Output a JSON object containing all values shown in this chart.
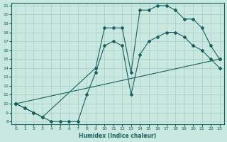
{
  "xlabel": "Humidex (Indice chaleur)",
  "bg_color": "#c8e8e0",
  "grid_color": "#a8ccc8",
  "line_color": "#1a6060",
  "xlim": [
    -0.5,
    23.5
  ],
  "ylim": [
    7.7,
    21.3
  ],
  "xticks": [
    0,
    1,
    2,
    3,
    4,
    5,
    6,
    7,
    8,
    9,
    10,
    11,
    12,
    13,
    14,
    15,
    16,
    17,
    18,
    19,
    20,
    21,
    22,
    23
  ],
  "yticks": [
    8,
    9,
    10,
    11,
    12,
    13,
    14,
    15,
    16,
    17,
    18,
    19,
    20,
    21
  ],
  "line1_x": [
    0,
    1,
    2,
    3,
    4,
    5,
    6,
    7,
    8,
    9,
    10,
    11,
    12,
    13,
    14,
    15,
    16,
    17,
    18,
    19,
    20,
    21,
    22,
    23
  ],
  "line1_y": [
    10,
    9.5,
    9.0,
    8.5,
    8.0,
    8.0,
    8.0,
    8.0,
    11.0,
    13.5,
    16.5,
    17.0,
    16.5,
    11.0,
    15.5,
    17.0,
    17.5,
    18.0,
    18.0,
    17.5,
    16.5,
    16.0,
    15.0,
    14.0
  ],
  "line2_x": [
    0,
    1,
    2,
    3,
    9,
    10,
    11,
    12,
    13,
    14,
    15,
    16,
    17,
    18,
    19,
    20,
    21,
    22,
    23
  ],
  "line2_y": [
    10,
    9.5,
    9.0,
    8.5,
    14.0,
    18.5,
    18.5,
    18.5,
    13.5,
    20.5,
    20.5,
    21.0,
    21.0,
    20.5,
    19.5,
    19.5,
    18.5,
    16.5,
    15.0
  ],
  "line3_x": [
    0,
    23
  ],
  "line3_y": [
    10,
    15.0
  ]
}
